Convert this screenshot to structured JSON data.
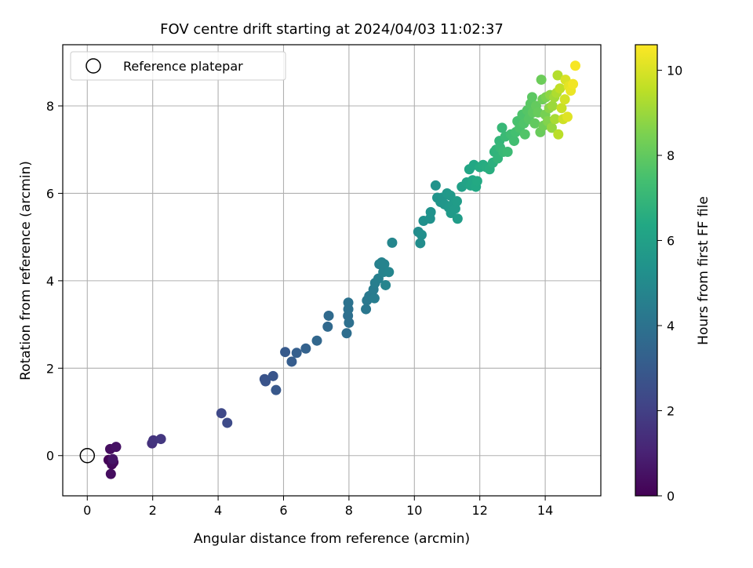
{
  "chart_data": {
    "type": "scatter",
    "title": "FOV centre drift starting at 2024/04/03 11:02:37",
    "xlabel": "Angular distance from reference (arcmin)",
    "ylabel": "Rotation from reference (arcmin)",
    "xlim": [
      -0.75,
      15.7
    ],
    "ylim": [
      -0.92,
      9.4
    ],
    "x_ticks": [
      0,
      2,
      4,
      6,
      8,
      10,
      12,
      14
    ],
    "y_ticks": [
      0,
      2,
      4,
      6,
      8
    ],
    "grid": true,
    "legend": {
      "placement": "top-left",
      "entries": [
        "Reference platepar"
      ]
    },
    "reference_point": {
      "x": 0,
      "y": 0,
      "label": "Reference platepar"
    },
    "colorbar": {
      "label": "Hours from first FF file",
      "colormap": "viridis",
      "range": [
        0,
        10.6
      ],
      "ticks": [
        0,
        2,
        4,
        6,
        8,
        10
      ]
    },
    "series": [
      {
        "points": [
          [
            0.65,
            -0.1,
            0.1
          ],
          [
            0.75,
            -0.2,
            0.2
          ],
          [
            0.8,
            -0.15,
            0.3
          ],
          [
            0.72,
            -0.42,
            0.35
          ],
          [
            0.7,
            0.15,
            0.4
          ],
          [
            0.88,
            0.2,
            0.5
          ],
          [
            0.78,
            -0.08,
            0.6
          ],
          [
            1.98,
            0.28,
            1.5
          ],
          [
            2.02,
            0.35,
            1.6
          ],
          [
            2.25,
            0.38,
            1.7
          ],
          [
            4.1,
            0.97,
            2.3
          ],
          [
            4.28,
            0.75,
            2.4
          ],
          [
            5.42,
            1.75,
            2.7
          ],
          [
            5.45,
            1.7,
            2.75
          ],
          [
            5.68,
            1.82,
            2.8
          ],
          [
            5.77,
            1.5,
            2.9
          ],
          [
            6.05,
            2.37,
            3.0
          ],
          [
            6.25,
            2.15,
            3.1
          ],
          [
            6.4,
            2.35,
            3.2
          ],
          [
            6.68,
            2.45,
            3.3
          ],
          [
            7.02,
            2.63,
            3.5
          ],
          [
            7.35,
            2.95,
            3.6
          ],
          [
            7.38,
            3.2,
            3.65
          ],
          [
            7.93,
            2.8,
            3.8
          ],
          [
            7.97,
            3.2,
            3.85
          ],
          [
            8.0,
            3.04,
            3.9
          ],
          [
            7.98,
            3.35,
            3.95
          ],
          [
            7.98,
            3.5,
            4.0
          ],
          [
            8.52,
            3.35,
            4.2
          ],
          [
            8.55,
            3.55,
            4.25
          ],
          [
            8.62,
            3.65,
            4.3
          ],
          [
            8.75,
            3.8,
            4.4
          ],
          [
            8.78,
            3.6,
            4.45
          ],
          [
            8.8,
            3.95,
            4.5
          ],
          [
            8.9,
            4.05,
            4.55
          ],
          [
            8.93,
            4.38,
            4.6
          ],
          [
            9.0,
            4.42,
            4.65
          ],
          [
            9.05,
            4.2,
            4.7
          ],
          [
            9.08,
            4.38,
            4.7
          ],
          [
            9.12,
            3.9,
            4.75
          ],
          [
            9.22,
            4.2,
            4.8
          ],
          [
            9.32,
            4.87,
            4.85
          ],
          [
            10.12,
            5.12,
            5.1
          ],
          [
            10.18,
            4.86,
            5.15
          ],
          [
            10.22,
            5.05,
            5.2
          ],
          [
            10.28,
            5.37,
            5.25
          ],
          [
            10.48,
            5.42,
            5.3
          ],
          [
            10.5,
            5.57,
            5.35
          ],
          [
            10.65,
            6.18,
            5.4
          ],
          [
            10.7,
            5.9,
            5.45
          ],
          [
            10.8,
            5.8,
            5.5
          ],
          [
            10.85,
            5.9,
            5.5
          ],
          [
            10.92,
            5.75,
            5.55
          ],
          [
            11.0,
            6.0,
            5.6
          ],
          [
            11.05,
            5.68,
            5.6
          ],
          [
            11.1,
            5.95,
            5.65
          ],
          [
            11.12,
            5.55,
            5.7
          ],
          [
            11.18,
            5.75,
            5.7
          ],
          [
            11.25,
            5.65,
            5.75
          ],
          [
            11.3,
            5.82,
            5.8
          ],
          [
            11.32,
            5.42,
            5.8
          ],
          [
            11.45,
            6.15,
            6.0
          ],
          [
            11.6,
            6.25,
            6.1
          ],
          [
            11.68,
            6.55,
            6.2
          ],
          [
            11.72,
            6.18,
            6.2
          ],
          [
            11.78,
            6.3,
            6.25
          ],
          [
            11.82,
            6.65,
            6.3
          ],
          [
            11.88,
            6.15,
            6.35
          ],
          [
            11.92,
            6.28,
            6.4
          ],
          [
            12.0,
            6.6,
            6.45
          ],
          [
            12.1,
            6.65,
            6.5
          ],
          [
            12.2,
            6.6,
            6.55
          ],
          [
            12.3,
            6.55,
            6.6
          ],
          [
            12.4,
            6.7,
            6.7
          ],
          [
            12.45,
            6.95,
            6.8
          ],
          [
            12.5,
            7.0,
            6.85
          ],
          [
            12.55,
            6.8,
            6.9
          ],
          [
            12.6,
            7.2,
            6.95
          ],
          [
            12.62,
            7.05,
            7.0
          ],
          [
            12.68,
            7.5,
            7.05
          ],
          [
            12.72,
            6.95,
            7.1
          ],
          [
            12.78,
            7.3,
            7.15
          ],
          [
            12.85,
            6.95,
            7.2
          ],
          [
            12.95,
            7.35,
            7.3
          ],
          [
            13.05,
            7.2,
            7.35
          ],
          [
            13.1,
            7.4,
            7.4
          ],
          [
            13.15,
            7.65,
            7.5
          ],
          [
            13.22,
            7.5,
            7.55
          ],
          [
            13.3,
            7.8,
            7.6
          ],
          [
            13.35,
            7.6,
            7.65
          ],
          [
            13.38,
            7.35,
            7.7
          ],
          [
            13.45,
            7.9,
            7.75
          ],
          [
            13.5,
            7.7,
            7.8
          ],
          [
            13.55,
            8.05,
            7.85
          ],
          [
            13.6,
            8.2,
            7.9
          ],
          [
            13.62,
            7.85,
            7.95
          ],
          [
            13.68,
            7.6,
            8.0
          ],
          [
            13.72,
            8.0,
            8.05
          ],
          [
            13.78,
            7.85,
            8.1
          ],
          [
            13.85,
            7.4,
            8.15
          ],
          [
            13.88,
            8.6,
            8.2
          ],
          [
            13.92,
            8.15,
            8.25
          ],
          [
            13.95,
            7.55,
            8.3
          ],
          [
            14.0,
            7.8,
            8.4
          ],
          [
            14.02,
            8.2,
            8.5
          ],
          [
            14.08,
            7.65,
            8.6
          ],
          [
            14.12,
            7.95,
            8.7
          ],
          [
            14.15,
            8.25,
            8.8
          ],
          [
            14.2,
            7.5,
            8.9
          ],
          [
            14.22,
            8.0,
            9.0
          ],
          [
            14.28,
            8.2,
            9.1
          ],
          [
            14.3,
            7.7,
            9.2
          ],
          [
            14.35,
            8.3,
            9.3
          ],
          [
            14.38,
            8.7,
            9.4
          ],
          [
            14.4,
            7.35,
            9.5
          ],
          [
            14.45,
            8.4,
            9.6
          ],
          [
            14.5,
            7.95,
            9.7
          ],
          [
            14.55,
            7.7,
            9.8
          ],
          [
            14.6,
            8.15,
            9.9
          ],
          [
            14.62,
            8.6,
            10.0
          ],
          [
            14.68,
            7.75,
            10.1
          ],
          [
            14.72,
            8.45,
            10.2
          ],
          [
            14.78,
            8.35,
            10.3
          ],
          [
            14.85,
            8.5,
            10.4
          ],
          [
            14.92,
            8.92,
            10.5
          ]
        ]
      }
    ]
  }
}
